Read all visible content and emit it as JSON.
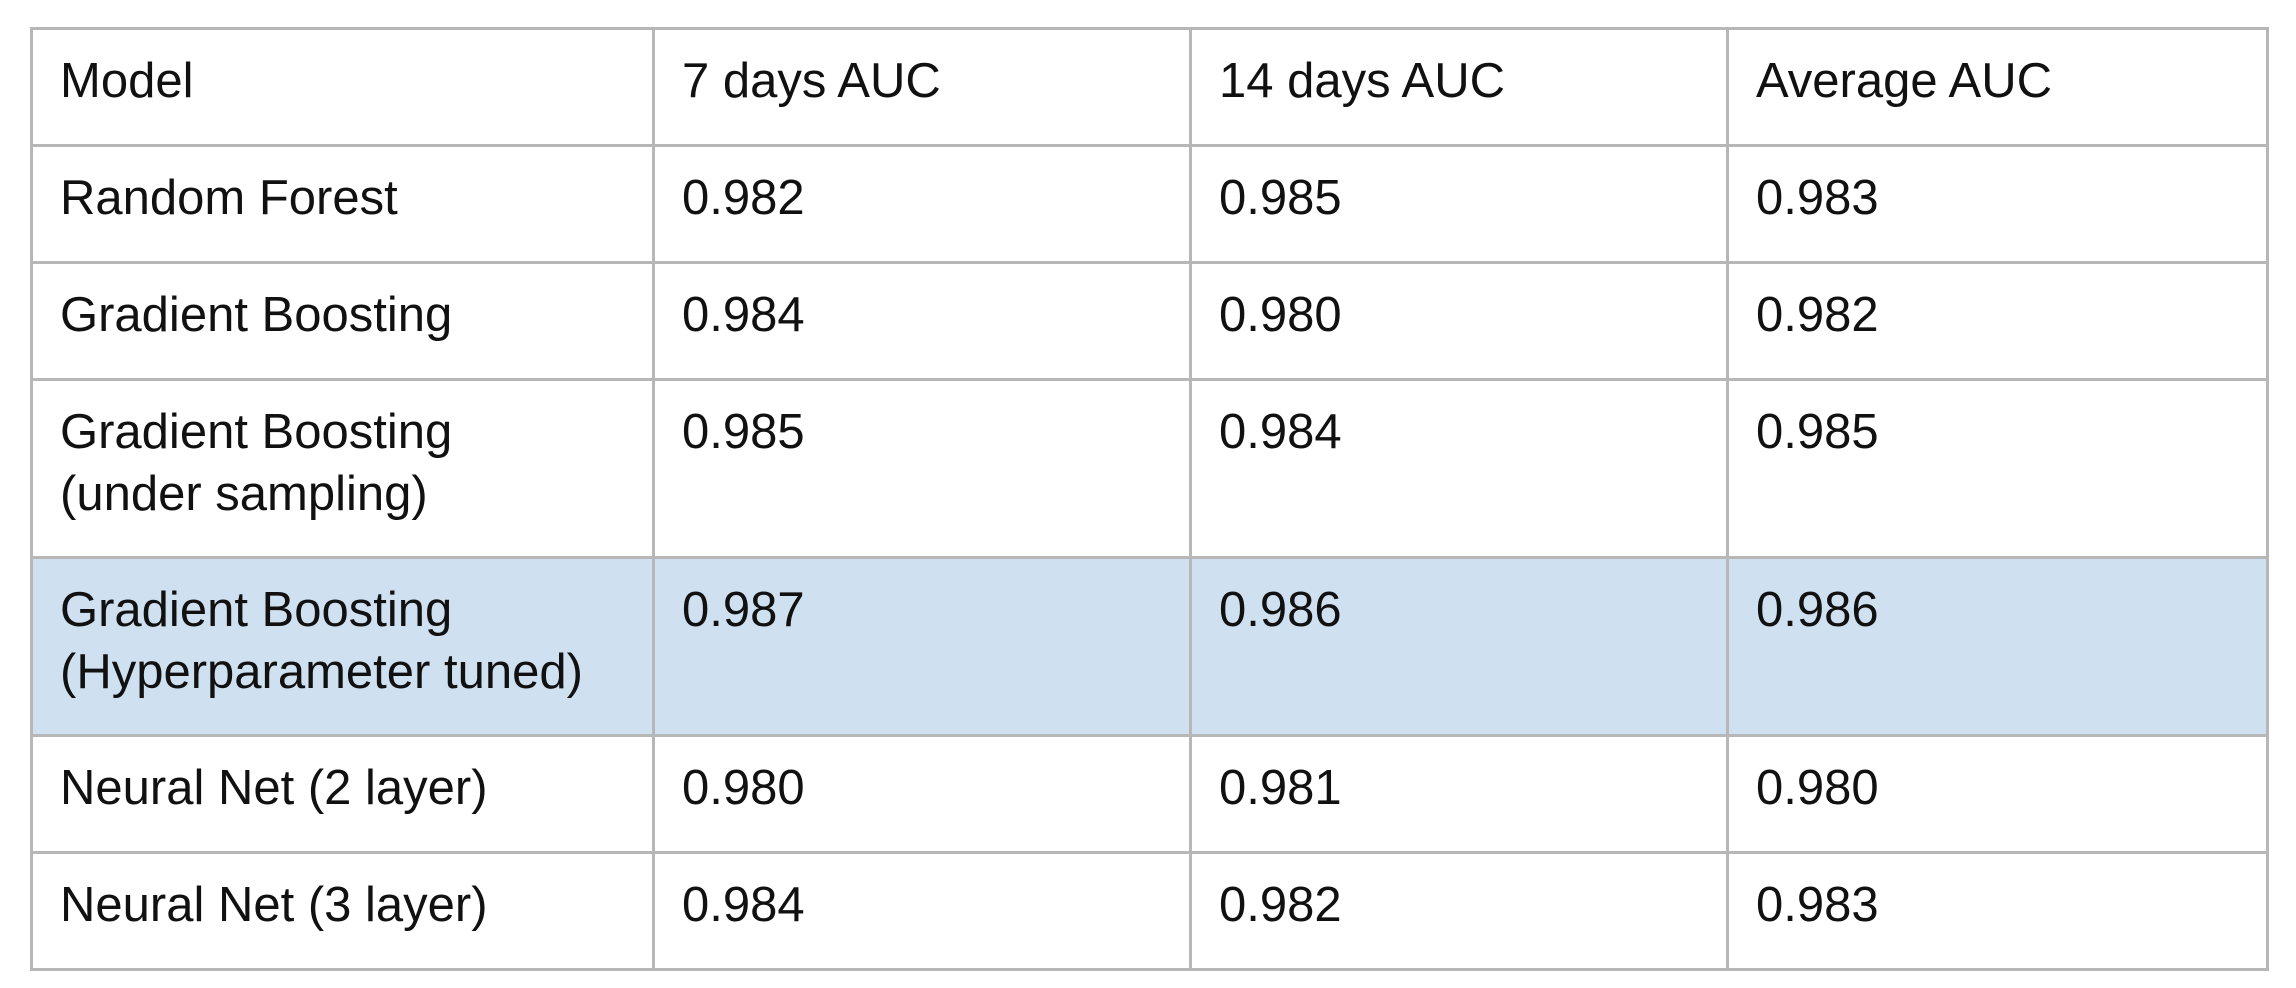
{
  "table": {
    "headers": [
      "Model",
      "7 days AUC",
      "14 days AUC",
      "Average AUC"
    ],
    "rows": [
      {
        "model": [
          "Random Forest"
        ],
        "auc_7": "0.982",
        "auc_14": "0.985",
        "avg": "0.983",
        "highlighted": false
      },
      {
        "model": [
          "Gradient Boosting"
        ],
        "auc_7": "0.984",
        "auc_14": "0.980",
        "avg": "0.982",
        "highlighted": false
      },
      {
        "model": [
          "Gradient Boosting",
          "(under sampling)"
        ],
        "auc_7": "0.985",
        "auc_14": "0.984",
        "avg": "0.985",
        "highlighted": false
      },
      {
        "model": [
          "Gradient Boosting",
          "(Hyperparameter tuned)"
        ],
        "auc_7": "0.987",
        "auc_14": "0.986",
        "avg": "0.986",
        "highlighted": true
      },
      {
        "model": [
          "Neural Net (2 layer)"
        ],
        "auc_7": "0.980",
        "auc_14": "0.981",
        "avg": "0.980",
        "highlighted": false
      },
      {
        "model": [
          "Neural Net (3 layer)"
        ],
        "auc_7": "0.984",
        "auc_14": "0.982",
        "avg": "0.983",
        "highlighted": false
      }
    ],
    "highlight_color": "#cfe0f0",
    "border_color": "#b7b7b7"
  }
}
